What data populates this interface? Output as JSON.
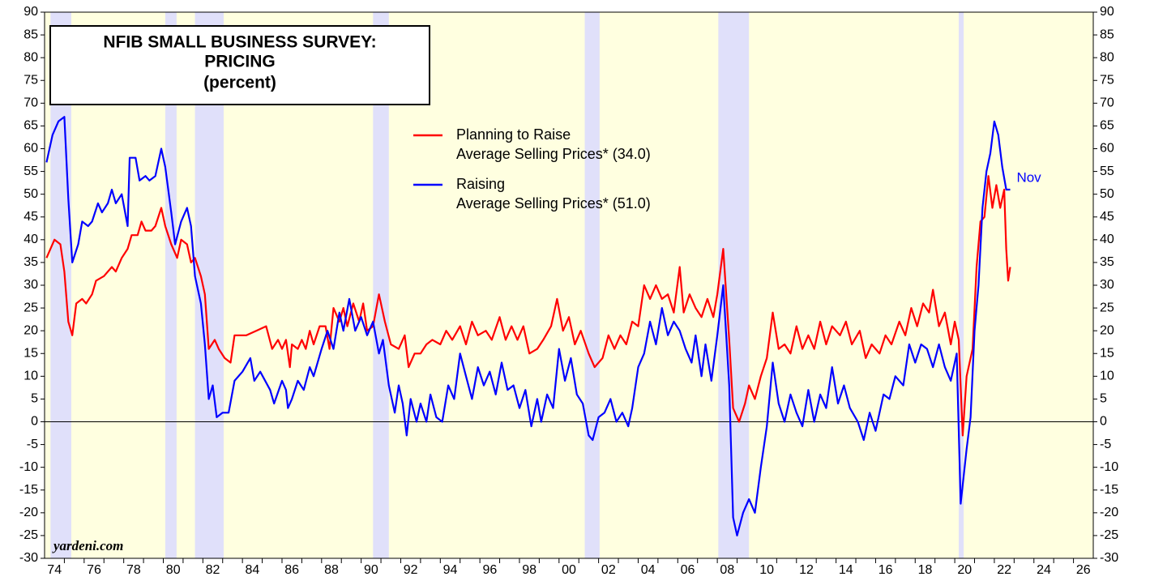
{
  "chart_data": {
    "type": "line",
    "title": [
      "NFIB SMALL BUSINESS SURVEY:",
      "PRICING"
    ],
    "subtitle": "(percent)",
    "source": "yardeni.com",
    "annotation": "Nov",
    "xlim": [
      1974,
      2027
    ],
    "ylim": [
      -30,
      90
    ],
    "yticks": [
      -30,
      -25,
      -20,
      -15,
      -10,
      -5,
      0,
      5,
      10,
      15,
      20,
      25,
      30,
      35,
      40,
      45,
      50,
      55,
      60,
      65,
      70,
      75,
      80,
      85,
      90
    ],
    "xticks": [
      {
        "value": 1974.5,
        "label": "74"
      },
      {
        "value": 1976.5,
        "label": "76"
      },
      {
        "value": 1978.5,
        "label": "78"
      },
      {
        "value": 1980.5,
        "label": "80"
      },
      {
        "value": 1982.5,
        "label": "82"
      },
      {
        "value": 1984.5,
        "label": "84"
      },
      {
        "value": 1986.5,
        "label": "86"
      },
      {
        "value": 1988.5,
        "label": "88"
      },
      {
        "value": 1990.5,
        "label": "90"
      },
      {
        "value": 1992.5,
        "label": "92"
      },
      {
        "value": 1994.5,
        "label": "94"
      },
      {
        "value": 1996.5,
        "label": "96"
      },
      {
        "value": 1998.5,
        "label": "98"
      },
      {
        "value": 2000.5,
        "label": "00"
      },
      {
        "value": 2002.5,
        "label": "02"
      },
      {
        "value": 2004.5,
        "label": "04"
      },
      {
        "value": 2006.5,
        "label": "06"
      },
      {
        "value": 2008.5,
        "label": "08"
      },
      {
        "value": 2010.5,
        "label": "10"
      },
      {
        "value": 2012.5,
        "label": "12"
      },
      {
        "value": 2014.5,
        "label": "14"
      },
      {
        "value": 2016.5,
        "label": "16"
      },
      {
        "value": 2018.5,
        "label": "18"
      },
      {
        "value": 2020.5,
        "label": "20"
      },
      {
        "value": 2022.5,
        "label": "22"
      },
      {
        "value": 2024.5,
        "label": "24"
      },
      {
        "value": 2026.5,
        "label": "26"
      }
    ],
    "xminor_ticks": [
      1975,
      1976,
      1977,
      1978,
      1979,
      1980,
      1981,
      1982,
      1983,
      1984,
      1985,
      1986,
      1987,
      1988,
      1989,
      1990,
      1991,
      1992,
      1993,
      1994,
      1995,
      1996,
      1997,
      1998,
      1999,
      2000,
      2001,
      2002,
      2003,
      2004,
      2005,
      2006,
      2007,
      2008,
      2009,
      2010,
      2011,
      2012,
      2013,
      2014,
      2015,
      2016,
      2017,
      2018,
      2019,
      2020,
      2021,
      2022,
      2023,
      2024,
      2025,
      2026
    ],
    "background": "#ffffe0",
    "zero_line": true,
    "shading": {
      "color": "#e0e0fa",
      "periods": [
        [
          1974.3,
          1975.35
        ],
        [
          1980.1,
          1980.67
        ],
        [
          1981.6,
          1983.05
        ],
        [
          1990.6,
          1991.4
        ],
        [
          2001.3,
          2002.05
        ],
        [
          2008.05,
          2009.6
        ],
        [
          2020.2,
          2020.45
        ]
      ]
    },
    "series": [
      {
        "name": "Planning to Raise\nAverage Selling Prices* (34.0)",
        "color": "#ff0000",
        "x": [
          1974.1,
          1974.5,
          1974.8,
          1975.0,
          1975.2,
          1975.4,
          1975.6,
          1975.9,
          1976.1,
          1976.4,
          1976.6,
          1977.0,
          1977.4,
          1977.6,
          1977.9,
          1978.2,
          1978.4,
          1978.7,
          1978.9,
          1979.1,
          1979.4,
          1979.6,
          1979.9,
          1980.1,
          1980.4,
          1980.7,
          1980.9,
          1981.2,
          1981.4,
          1981.6,
          1981.9,
          1982.1,
          1982.3,
          1982.6,
          1982.8,
          1983.1,
          1983.4,
          1983.6,
          1984.2,
          1984.7,
          1985.2,
          1985.5,
          1985.8,
          1986.0,
          1986.2,
          1986.4,
          1986.5,
          1986.8,
          1987.0,
          1987.2,
          1987.4,
          1987.6,
          1987.9,
          1988.2,
          1988.4,
          1988.6,
          1988.9,
          1989.1,
          1989.3,
          1989.6,
          1989.9,
          1990.1,
          1990.3,
          1990.6,
          1990.9,
          1991.2,
          1991.5,
          1991.9,
          1992.2,
          1992.4,
          1992.7,
          1993.0,
          1993.3,
          1993.6,
          1994.0,
          1994.3,
          1994.6,
          1995.0,
          1995.3,
          1995.6,
          1995.9,
          1996.3,
          1996.6,
          1997.0,
          1997.3,
          1997.6,
          1997.9,
          1998.2,
          1998.5,
          1998.9,
          1999.2,
          1999.6,
          1999.9,
          2000.2,
          2000.5,
          2000.8,
          2001.1,
          2001.5,
          2001.8,
          2002.2,
          2002.5,
          2002.8,
          2003.1,
          2003.4,
          2003.7,
          2004.0,
          2004.3,
          2004.6,
          2004.9,
          2005.2,
          2005.5,
          2005.8,
          2006.1,
          2006.3,
          2006.6,
          2006.9,
          2007.2,
          2007.5,
          2007.8,
          2008.0,
          2008.3,
          2008.6,
          2008.8,
          2009.1,
          2009.4,
          2009.6,
          2009.9,
          2010.2,
          2010.5,
          2010.8,
          2011.1,
          2011.4,
          2011.7,
          2012.0,
          2012.3,
          2012.6,
          2012.9,
          2013.2,
          2013.5,
          2013.8,
          2014.2,
          2014.5,
          2014.8,
          2015.2,
          2015.5,
          2015.8,
          2016.2,
          2016.5,
          2016.8,
          2017.2,
          2017.5,
          2017.8,
          2018.1,
          2018.4,
          2018.7,
          2018.9,
          2019.2,
          2019.5,
          2019.8,
          2020.0,
          2020.2,
          2020.4,
          2020.6,
          2020.9,
          2021.1,
          2021.3,
          2021.5,
          2021.7,
          2021.9,
          2022.1,
          2022.3,
          2022.5,
          2022.6,
          2022.7,
          2022.8
        ],
        "values": [
          36,
          40,
          39,
          33,
          22,
          19,
          26,
          27,
          26,
          28,
          31,
          32,
          34,
          33,
          36,
          38,
          41,
          41,
          44,
          42,
          42,
          43,
          47,
          43,
          39,
          36,
          40,
          39,
          35,
          36,
          32,
          28,
          16,
          18,
          16,
          14,
          13,
          19,
          19,
          20,
          21,
          16,
          18,
          16,
          18,
          12,
          17,
          16,
          18,
          16,
          20,
          17,
          21,
          21,
          16,
          25,
          22,
          25,
          21,
          26,
          22,
          26,
          20,
          21,
          28,
          22,
          17,
          16,
          19,
          12,
          15,
          15,
          17,
          18,
          17,
          20,
          18,
          21,
          17,
          22,
          19,
          20,
          18,
          23,
          18,
          21,
          18,
          21,
          15,
          16,
          18,
          21,
          27,
          20,
          23,
          17,
          20,
          15,
          12,
          14,
          19,
          16,
          19,
          17,
          22,
          21,
          30,
          27,
          30,
          27,
          28,
          24,
          34,
          24,
          28,
          25,
          23,
          27,
          23,
          28,
          38,
          18,
          3,
          0,
          4,
          8,
          5,
          10,
          14,
          24,
          16,
          17,
          15,
          21,
          16,
          19,
          16,
          22,
          17,
          21,
          19,
          22,
          17,
          20,
          14,
          17,
          15,
          19,
          17,
          22,
          19,
          25,
          21,
          26,
          24,
          29,
          21,
          24,
          17,
          22,
          18,
          -3,
          10,
          16,
          34,
          44,
          45,
          54,
          47,
          52,
          47,
          51,
          38,
          31,
          34
        ]
      },
      {
        "name": "Raising\nAverage Selling Prices* (51.0)",
        "color": "#0000ff",
        "x": [
          1974.1,
          1974.4,
          1974.7,
          1975.0,
          1975.2,
          1975.4,
          1975.7,
          1975.9,
          1976.2,
          1976.4,
          1976.7,
          1976.9,
          1977.2,
          1977.4,
          1977.6,
          1977.9,
          1978.2,
          1978.3,
          1978.6,
          1978.8,
          1979.1,
          1979.3,
          1979.6,
          1979.9,
          1980.1,
          1980.4,
          1980.6,
          1980.9,
          1981.2,
          1981.4,
          1981.6,
          1981.9,
          1982.1,
          1982.3,
          1982.5,
          1982.7,
          1983.0,
          1983.3,
          1983.6,
          1984.0,
          1984.4,
          1984.6,
          1984.9,
          1985.4,
          1985.6,
          1986.0,
          1986.2,
          1986.3,
          1986.5,
          1986.8,
          1987.1,
          1987.4,
          1987.6,
          1988.0,
          1988.3,
          1988.6,
          1988.9,
          1989.1,
          1989.4,
          1989.7,
          1990.0,
          1990.3,
          1990.6,
          1990.9,
          1991.1,
          1991.4,
          1991.7,
          1991.9,
          1992.1,
          1992.3,
          1992.5,
          1992.8,
          1993.0,
          1993.3,
          1993.5,
          1993.8,
          1994.1,
          1994.4,
          1994.7,
          1995.0,
          1995.3,
          1995.6,
          1995.9,
          1996.2,
          1996.5,
          1996.8,
          1997.1,
          1997.4,
          1997.7,
          1998.0,
          1998.3,
          1998.6,
          1998.9,
          1999.1,
          1999.4,
          1999.7,
          2000.0,
          2000.3,
          2000.6,
          2000.9,
          2001.2,
          2001.5,
          2001.7,
          2002.0,
          2002.3,
          2002.6,
          2002.9,
          2003.2,
          2003.5,
          2003.7,
          2004.0,
          2004.3,
          2004.6,
          2004.9,
          2005.2,
          2005.5,
          2005.8,
          2006.1,
          2006.4,
          2006.7,
          2006.9,
          2007.2,
          2007.4,
          2007.7,
          2008.0,
          2008.3,
          2008.6,
          2008.8,
          2009.0,
          2009.3,
          2009.6,
          2009.9,
          2010.2,
          2010.5,
          2010.8,
          2011.1,
          2011.4,
          2011.7,
          2012.0,
          2012.3,
          2012.6,
          2012.9,
          2013.2,
          2013.5,
          2013.8,
          2014.1,
          2014.4,
          2014.7,
          2015.1,
          2015.4,
          2015.7,
          2016.0,
          2016.4,
          2016.7,
          2017.0,
          2017.4,
          2017.7,
          2018.0,
          2018.3,
          2018.6,
          2018.9,
          2019.2,
          2019.5,
          2019.8,
          2020.1,
          2020.3,
          2020.6,
          2020.8,
          2021.0,
          2021.2,
          2021.4,
          2021.6,
          2021.8,
          2022.0,
          2022.2,
          2022.4,
          2022.6,
          2022.8
        ],
        "values": [
          57,
          63,
          66,
          67,
          49,
          35,
          39,
          44,
          43,
          44,
          48,
          46,
          48,
          51,
          48,
          50,
          43,
          58,
          58,
          53,
          54,
          53,
          54,
          60,
          56,
          46,
          39,
          44,
          47,
          43,
          32,
          26,
          17,
          5,
          8,
          1,
          2,
          2,
          9,
          11,
          14,
          9,
          11,
          7,
          4,
          9,
          7,
          3,
          5,
          9,
          7,
          12,
          10,
          16,
          20,
          16,
          24,
          20,
          27,
          20,
          23,
          19,
          22,
          15,
          18,
          8,
          2,
          8,
          4,
          -3,
          5,
          0,
          4,
          0,
          6,
          1,
          0,
          8,
          5,
          15,
          10,
          5,
          12,
          8,
          11,
          6,
          13,
          7,
          8,
          3,
          7,
          -1,
          5,
          0,
          6,
          3,
          16,
          9,
          14,
          6,
          4,
          -3,
          -4,
          1,
          2,
          5,
          0,
          2,
          -1,
          3,
          12,
          15,
          22,
          17,
          25,
          19,
          22,
          20,
          16,
          13,
          19,
          10,
          17,
          9,
          19,
          30,
          8,
          -21,
          -25,
          -20,
          -17,
          -20,
          -10,
          -1,
          13,
          4,
          0,
          6,
          2,
          -1,
          7,
          0,
          6,
          3,
          12,
          4,
          8,
          3,
          0,
          -4,
          2,
          -2,
          6,
          5,
          10,
          8,
          17,
          13,
          17,
          16,
          12,
          17,
          12,
          9,
          15,
          -18,
          -6,
          1,
          20,
          30,
          47,
          55,
          59,
          66,
          63,
          56,
          51,
          51
        ]
      }
    ]
  }
}
